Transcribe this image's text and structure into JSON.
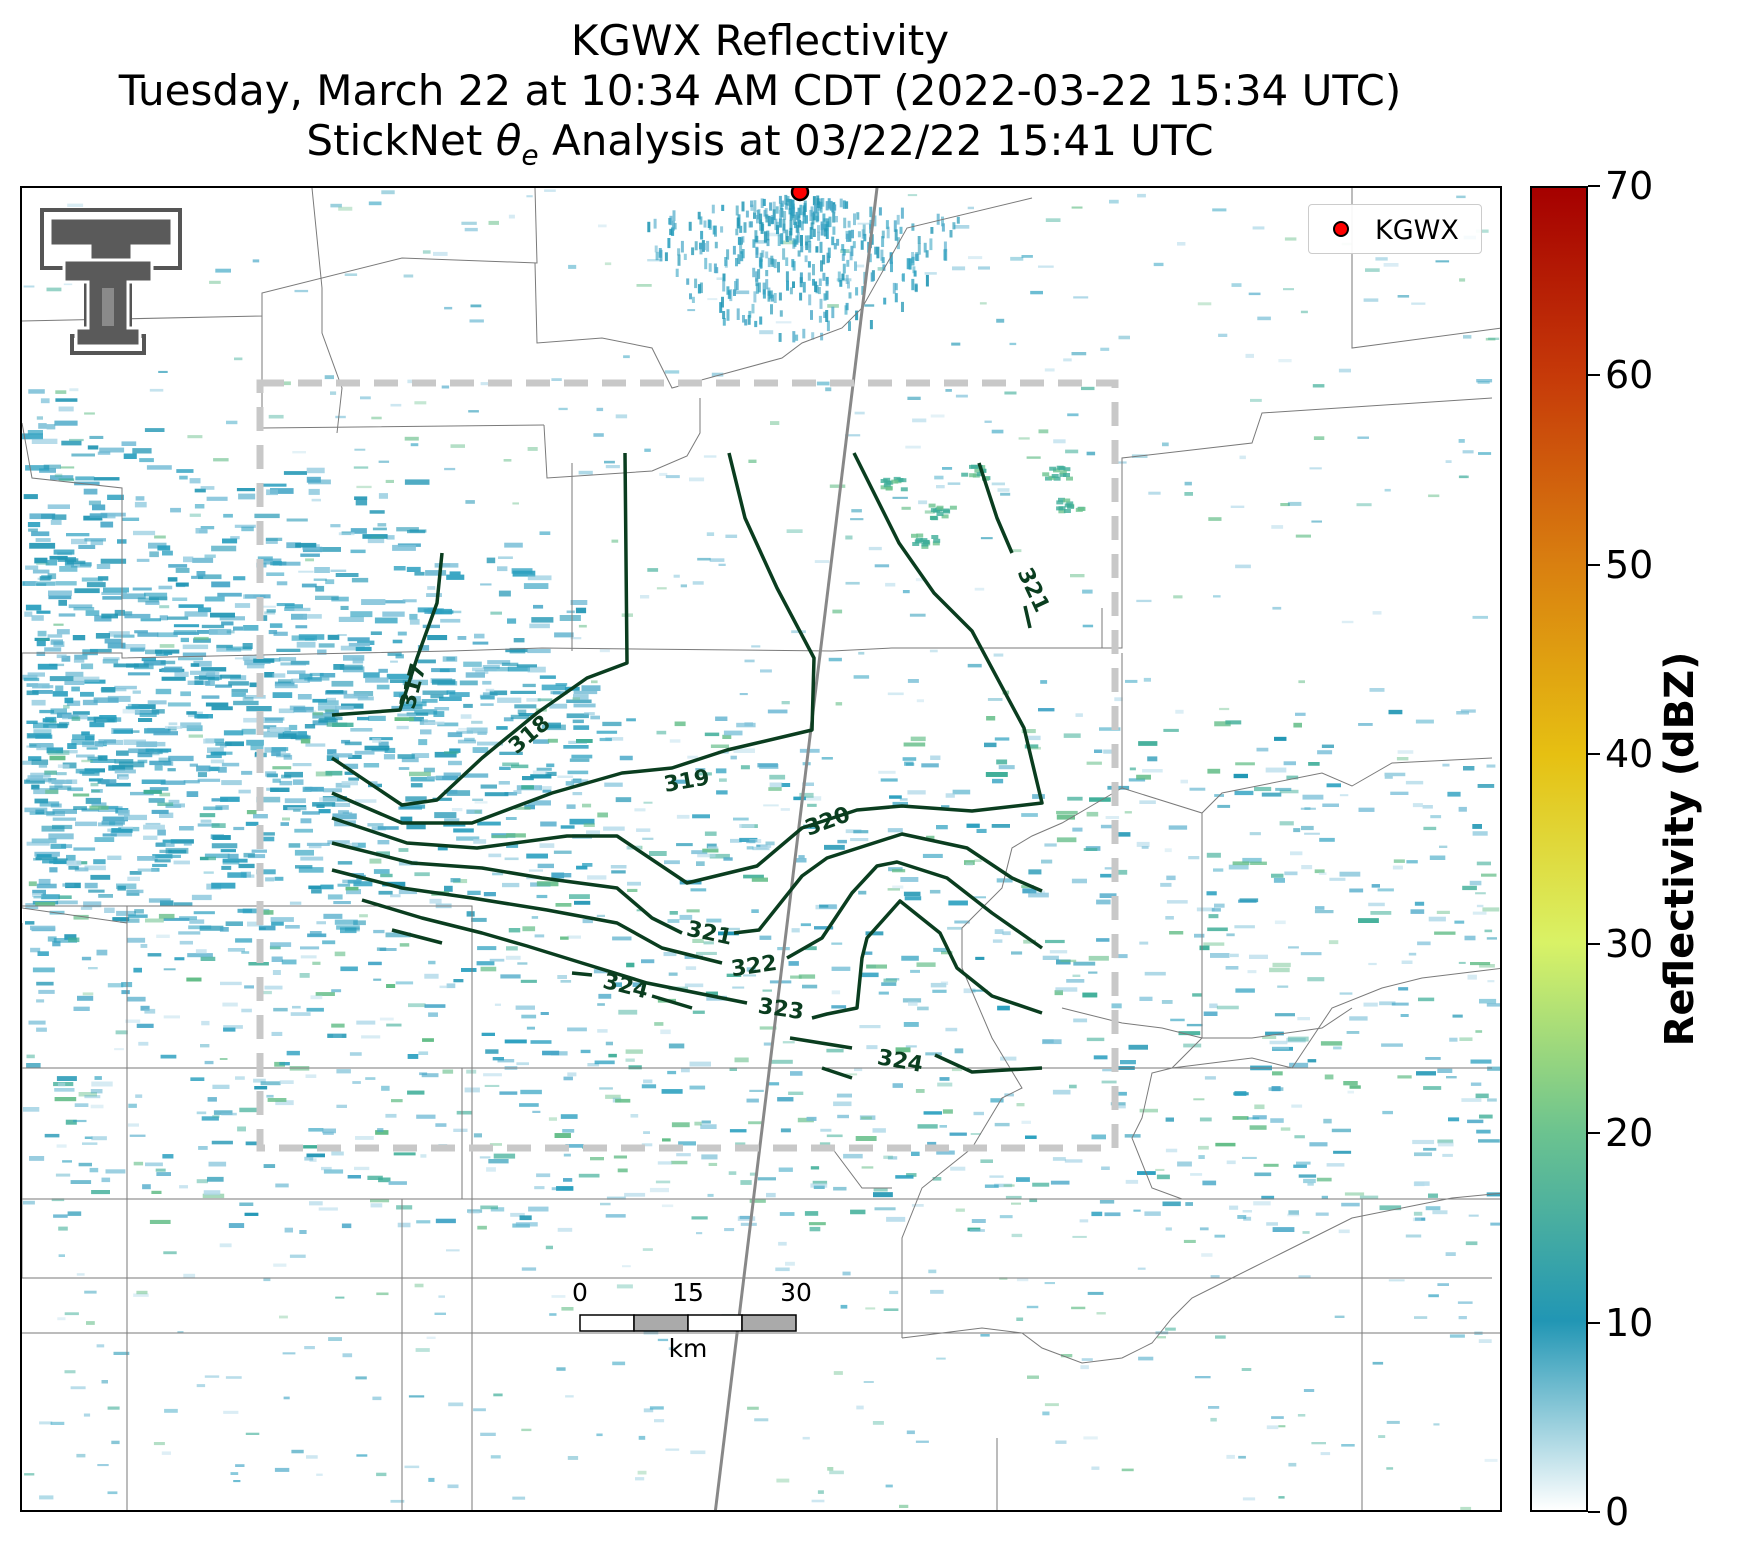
{
  "header": {
    "title_line1": "KGWX Reflectivity",
    "title_line2": "Tuesday, March 22 at 10:34 AM CDT (2022-03-22 15:34 UTC)",
    "title_line3_prefix": "StickNet ",
    "title_line3_symbol": "θ",
    "title_line3_subscript": "e",
    "title_line3_suffix": " Analysis at 03/22/22 15:41 UTC"
  },
  "legend": {
    "label": "KGWX",
    "marker_color": "#ff0000"
  },
  "scale_bar": {
    "ticks": [
      "0",
      "15",
      "30"
    ],
    "unit": "km"
  },
  "logo": {
    "text": "TT",
    "name": "texas-tech-double-t-logo"
  },
  "colorbar": {
    "title": "Reflectivity (dBZ)",
    "ticks": [
      "0",
      "10",
      "20",
      "30",
      "40",
      "50",
      "60",
      "70"
    ],
    "min": 0,
    "max": 70,
    "colors": [
      "#ffffff",
      "#2196b4",
      "#6cc38f",
      "#d9f266",
      "#e6c012",
      "#d98010",
      "#c63a09",
      "#a50000"
    ]
  },
  "contours": {
    "color": "#0a3d1f",
    "labels": [
      "317",
      "318",
      "319",
      "320",
      "321",
      "321",
      "322",
      "323",
      "324",
      "324"
    ]
  }
}
